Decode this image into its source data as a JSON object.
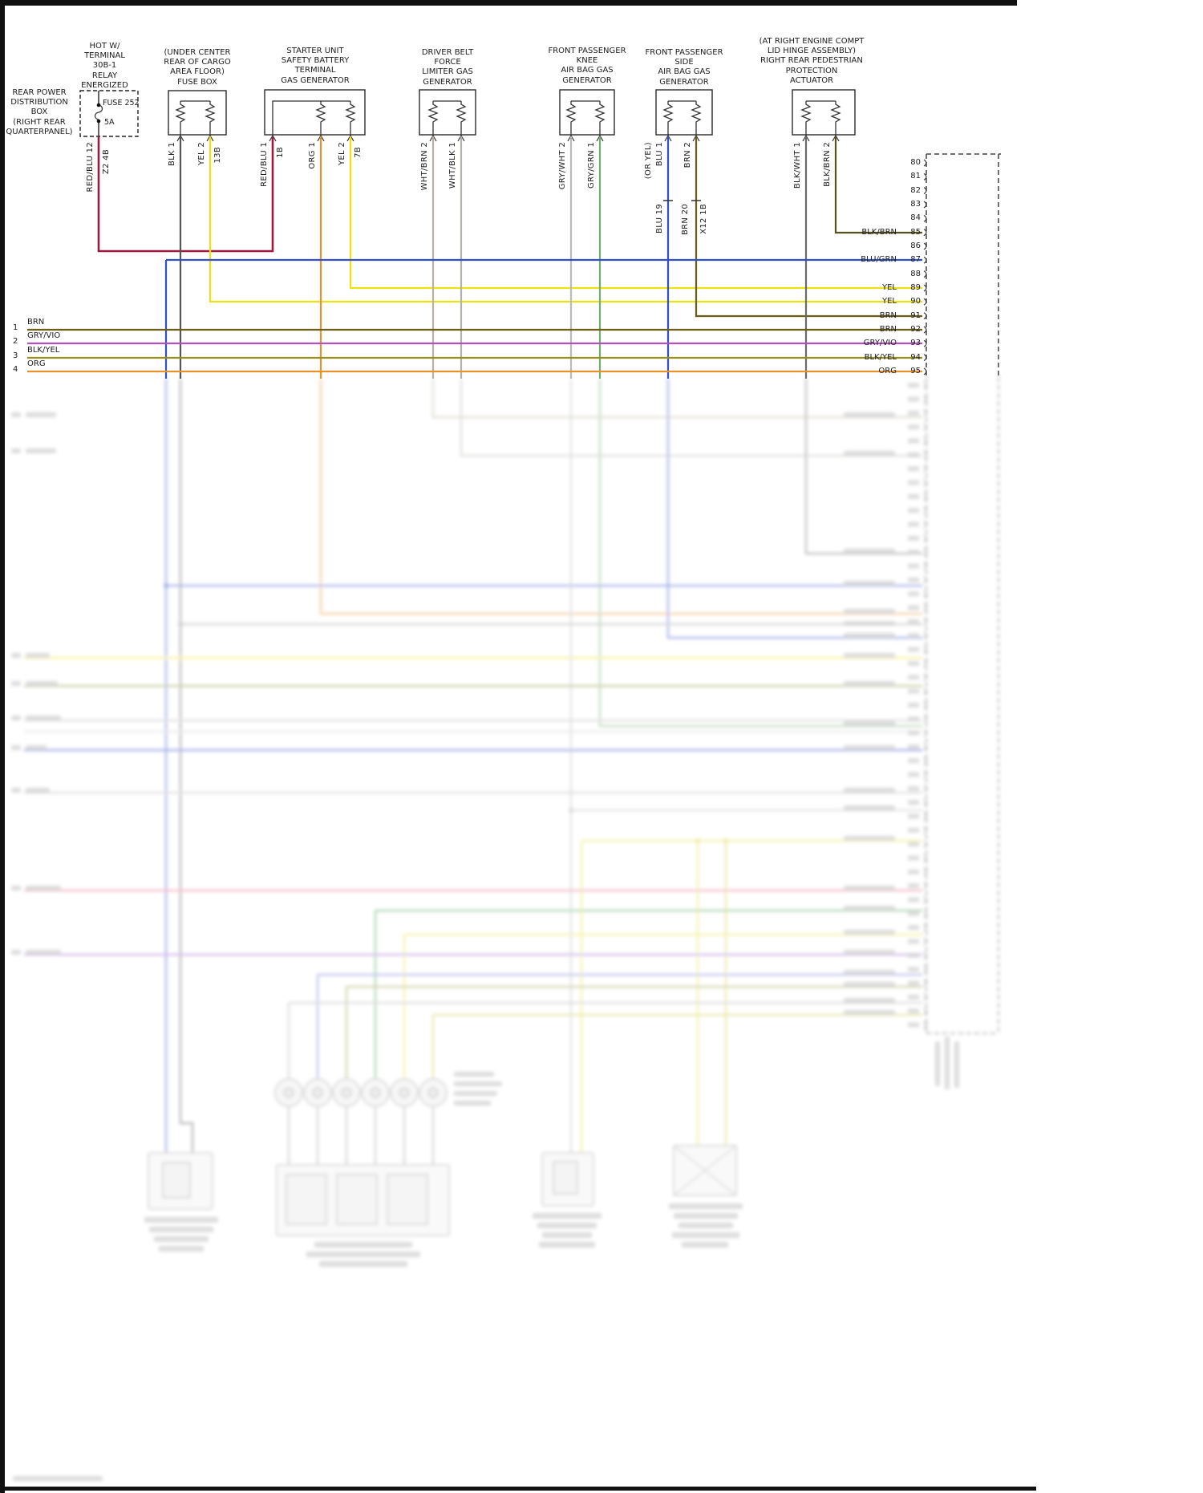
{
  "page": {
    "type": "airbag-system-wiring-diagram",
    "background": "#ffffff"
  },
  "headers": {
    "hot_w": "HOT W/\nTERMINAL\n30B-1\nRELAY\nENERGIZED",
    "rear_power_box": "REAR POWER\nDISTRIBUTION\nBOX\n(RIGHT REAR\nQUARTERPANEL)",
    "cargo_fuse_box": "(UNDER CENTER\nREAR OF CARGO\nAREA FLOOR)\nFUSE BOX",
    "starter_unit": "STARTER UNIT\nSAFETY BATTERY\nTERMINAL\nGAS GENERATOR",
    "driver_belt": "DRIVER BELT\nFORCE\nLIMITER GAS\nGENERATOR",
    "knee_airbag": "FRONT PASSENGER\nKNEE\nAIR BAG GAS\nGENERATOR",
    "side_airbag": "FRONT PASSENGER\nSIDE\nAIR BAG GAS\nGENERATOR",
    "pedestrian_actuator": "(AT RIGHT ENGINE COMPT\nLID HINGE ASSEMBLY)\nRIGHT REAR PEDESTRIAN\nPROTECTION\nACTUATOR"
  },
  "fuse": {
    "name": "FUSE 252",
    "rating": "5A"
  },
  "wires": {
    "fuse_out": {
      "label": "RED/BLU 12",
      "circuit": "Z2 4B"
    },
    "cargo_1": {
      "label": "BLK 1"
    },
    "cargo_2": {
      "label": "YEL 2",
      "circuit": "13B"
    },
    "starter_1": {
      "label": "RED/BLU 1",
      "circuit": "1B"
    },
    "starter_2": {
      "label": "ORG 1"
    },
    "starter_3": {
      "label": "YEL 2",
      "circuit": "7B"
    },
    "belt_2": {
      "label": "WHT/BRN 2"
    },
    "belt_1": {
      "label": "WHT/BLK 1"
    },
    "knee_2": {
      "label": "GRY/WHT 2"
    },
    "knee_1": {
      "label": "GRY/GRN 1"
    },
    "side_1a": {
      "label": "(OR YEL)"
    },
    "side_1b": {
      "label": "BLU 1"
    },
    "side_2": {
      "label": "BRN 2"
    },
    "x12_a": {
      "label": "BLU 19"
    },
    "x12_b": {
      "label": "BRN 20"
    },
    "x12_c": {
      "label": "X12 1B"
    },
    "ped_1": {
      "label": "BLK/WHT 1"
    },
    "ped_2": {
      "label": "BLK/BRN 2"
    }
  },
  "right_connector": {
    "pins": [
      {
        "n": "80",
        "w": ""
      },
      {
        "n": "81",
        "w": ""
      },
      {
        "n": "82",
        "w": ""
      },
      {
        "n": "83",
        "w": ""
      },
      {
        "n": "84",
        "w": ""
      },
      {
        "n": "85",
        "w": "BLK/BRN"
      },
      {
        "n": "86",
        "w": ""
      },
      {
        "n": "87",
        "w": "BLU/GRN"
      },
      {
        "n": "88",
        "w": ""
      },
      {
        "n": "89",
        "w": "YEL"
      },
      {
        "n": "90",
        "w": "YEL"
      },
      {
        "n": "91",
        "w": "BRN"
      },
      {
        "n": "92",
        "w": "BRN"
      },
      {
        "n": "93",
        "w": "GRY/VIO"
      },
      {
        "n": "94",
        "w": "BLK/YEL"
      },
      {
        "n": "95",
        "w": "ORG"
      }
    ]
  },
  "left_pins": [
    {
      "n": "1",
      "w": "BRN"
    },
    {
      "n": "2",
      "w": "GRY/VIO"
    },
    {
      "n": "3",
      "w": "BLK/YEL"
    },
    {
      "n": "4",
      "w": "ORG"
    }
  ],
  "wire_colors": {
    "red_blu": "#9b1b40",
    "blk": "#555555",
    "yel": "#efe012",
    "org": "#e8922a",
    "wht_brn": "#b8b0a0",
    "wht_blk": "#b2b2ac",
    "gry_wht": "#b8bcb8",
    "gry_grn": "#6fae6f",
    "blu": "#3050c8",
    "brn": "#6b5d14",
    "blk_wht": "#6a6a6a",
    "blk_brn": "#57511c",
    "blu_grn": "#3050c8",
    "gry_vio": "#b44fc0",
    "blk_yel": "#9a8f1a"
  }
}
